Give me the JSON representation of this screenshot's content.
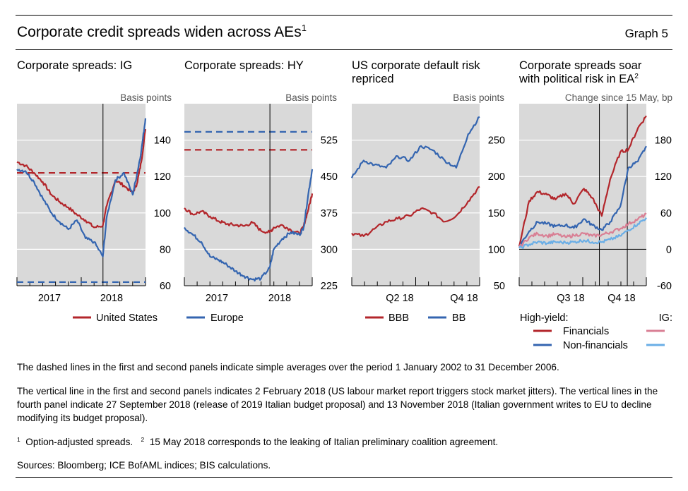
{
  "header": {
    "title": "Corporate credit spreads widen across AEs",
    "title_sup": "1",
    "graph_label": "Graph 5"
  },
  "panels": [
    {
      "title": "Corporate spreads: IG",
      "unit": "Basis points"
    },
    {
      "title": "Corporate spreads: HY",
      "unit": "Basis points"
    },
    {
      "title_line1": "US corporate default risk",
      "title_line2": "repriced",
      "unit": "Basis points"
    },
    {
      "title_line1": "Corporate spreads soar",
      "title_line2": "with political risk in EA",
      "title_sup": "2",
      "unit": "Change since 15 May, bp"
    }
  ],
  "legends": {
    "p1": [
      "United States",
      "Europe"
    ],
    "p3": [
      "BBB",
      "BB"
    ],
    "p4": {
      "hy_header": "High-yield:",
      "ig_header": "IG:",
      "rows": [
        "Financials",
        "Non-financials"
      ]
    }
  },
  "notes": {
    "dashed": "The dashed lines in the first and second panels indicate simple averages over the period 1 January 2002 to 31 December 2006.",
    "vertical": "The vertical line in the first and second panels indicates 2 February 2018 (US labour market report triggers stock market jitters). The vertical lines in the fourth panel indicate 27 September 2018 (release of 2019 Italian budget proposal) and 13 November 2018 (Italian government writes to EU to decline modifying its budget proposal).",
    "footnote1_mark": "1",
    "footnote1": "Option-adjusted spreads.",
    "footnote2_mark": "2",
    "footnote2": "15 May 2018 corresponds to the leaking of Italian preliminary coalition agreement.",
    "sources": "Sources: Bloomberg; ICE BofAML indices; BIS calculations."
  },
  "colors": {
    "red": "#b3262b",
    "blue": "#3465b0",
    "pink": "#d97f94",
    "lightblue": "#6aaee6",
    "panel_bg": "#d9d9d9"
  },
  "chart_data": [
    {
      "type": "line",
      "title": "Corporate spreads: IG",
      "ylabel": "Basis points",
      "ylim": [
        60,
        160
      ],
      "yticks": [
        60,
        80,
        100,
        120,
        140
      ],
      "xticks": [
        "2017",
        "2018"
      ],
      "x_range": [
        "2016-06",
        "2018-12"
      ],
      "vline": "2018-02-02",
      "series": [
        {
          "name": "United States",
          "color": "#b3262b",
          "x": [
            "2016-06",
            "2016-08",
            "2016-10",
            "2016-12",
            "2017-02",
            "2017-04",
            "2017-06",
            "2017-08",
            "2017-10",
            "2017-12",
            "2018-02",
            "2018-03",
            "2018-05",
            "2018-07",
            "2018-09",
            "2018-10",
            "2018-11",
            "2018-12"
          ],
          "values": [
            128,
            126,
            122,
            117,
            110,
            106,
            103,
            99,
            96,
            92,
            93,
            104,
            118,
            115,
            111,
            116,
            128,
            146
          ]
        },
        {
          "name": "Europe",
          "color": "#3465b0",
          "x": [
            "2016-06",
            "2016-08",
            "2016-10",
            "2016-12",
            "2017-02",
            "2017-04",
            "2017-06",
            "2017-08",
            "2017-10",
            "2017-12",
            "2018-02",
            "2018-03",
            "2018-05",
            "2018-07",
            "2018-09",
            "2018-10",
            "2018-11",
            "2018-12"
          ],
          "values": [
            124,
            123,
            117,
            108,
            100,
            95,
            91,
            96,
            86,
            84,
            76,
            98,
            118,
            122,
            110,
            121,
            134,
            152
          ]
        },
        {
          "name": "United States average",
          "color": "#b3262b",
          "dashed": true,
          "values": [
            122
          ]
        },
        {
          "name": "Europe average",
          "color": "#3465b0",
          "dashed": true,
          "values": [
            62
          ]
        }
      ]
    },
    {
      "type": "line",
      "title": "Corporate spreads: HY",
      "ylabel": "Basis points",
      "ylim": [
        225,
        600
      ],
      "yticks": [
        225,
        300,
        375,
        450,
        525
      ],
      "xticks": [
        "2017",
        "2018"
      ],
      "x_range": [
        "2016-06",
        "2018-12"
      ],
      "vline": "2018-02-02",
      "series": [
        {
          "name": "United States",
          "color": "#b3262b",
          "x": [
            "2016-06",
            "2016-08",
            "2016-10",
            "2016-12",
            "2017-02",
            "2017-04",
            "2017-06",
            "2017-08",
            "2017-10",
            "2017-12",
            "2018-02",
            "2018-03",
            "2018-05",
            "2018-07",
            "2018-09",
            "2018-10",
            "2018-11",
            "2018-12"
          ],
          "values": [
            385,
            372,
            378,
            368,
            358,
            352,
            350,
            348,
            355,
            338,
            335,
            345,
            350,
            340,
            332,
            348,
            380,
            415
          ]
        },
        {
          "name": "Europe",
          "color": "#3465b0",
          "x": [
            "2016-06",
            "2016-08",
            "2016-10",
            "2016-12",
            "2017-02",
            "2017-04",
            "2017-06",
            "2017-08",
            "2017-10",
            "2017-12",
            "2018-02",
            "2018-03",
            "2018-05",
            "2018-07",
            "2018-09",
            "2018-10",
            "2018-11",
            "2018-12"
          ],
          "values": [
            345,
            330,
            315,
            285,
            278,
            268,
            255,
            245,
            238,
            240,
            262,
            300,
            322,
            335,
            330,
            345,
            410,
            465
          ]
        },
        {
          "name": "United States average",
          "color": "#b3262b",
          "dashed": true,
          "values": [
            505
          ]
        },
        {
          "name": "Europe average",
          "color": "#3465b0",
          "dashed": true,
          "values": [
            542
          ]
        }
      ]
    },
    {
      "type": "line",
      "title": "US corporate default risk repriced",
      "ylabel": "Basis points",
      "ylim": [
        50,
        300
      ],
      "yticks": [
        50,
        100,
        150,
        200,
        250
      ],
      "xticks": [
        "Q2 18",
        "Q4 18"
      ],
      "x_range": [
        "2018-01",
        "2018-12"
      ],
      "series": [
        {
          "name": "BBB",
          "color": "#b3262b",
          "x": [
            "2018-01",
            "2018-02",
            "2018-03",
            "2018-04",
            "2018-05",
            "2018-06",
            "2018-07",
            "2018-08",
            "2018-09",
            "2018-10",
            "2018-11",
            "2018-12"
          ],
          "values": [
            122,
            118,
            128,
            138,
            142,
            146,
            156,
            150,
            138,
            146,
            166,
            186
          ]
        },
        {
          "name": "BB",
          "color": "#3465b0",
          "x": [
            "2018-01",
            "2018-02",
            "2018-03",
            "2018-04",
            "2018-05",
            "2018-06",
            "2018-07",
            "2018-08",
            "2018-09",
            "2018-10",
            "2018-11",
            "2018-12"
          ],
          "values": [
            198,
            222,
            216,
            212,
            228,
            222,
            242,
            236,
            222,
            212,
            258,
            282
          ]
        }
      ]
    },
    {
      "type": "line",
      "title": "Corporate spreads soar with political risk in EA",
      "ylabel": "Change since 15 May, bp",
      "ylim": [
        -60,
        240
      ],
      "yticks": [
        -60,
        0,
        60,
        120,
        180
      ],
      "xticks": [
        "Q3 18",
        "Q4 18"
      ],
      "x_range": [
        "2018-05-15",
        "2018-12-15"
      ],
      "vlines": [
        "2018-09-27",
        "2018-11-13"
      ],
      "series": [
        {
          "name": "High-yield Financials",
          "color": "#b3262b",
          "x": [
            "2018-05-15",
            "2018-06-01",
            "2018-06-15",
            "2018-07-01",
            "2018-07-15",
            "2018-08-01",
            "2018-08-15",
            "2018-09-01",
            "2018-09-15",
            "2018-10-01",
            "2018-10-15",
            "2018-11-01",
            "2018-11-15",
            "2018-12-01",
            "2018-12-15"
          ],
          "values": [
            5,
            80,
            95,
            90,
            82,
            92,
            75,
            100,
            85,
            55,
            115,
            160,
            165,
            200,
            220
          ]
        },
        {
          "name": "High-yield Non-financials",
          "color": "#3465b0",
          "x": [
            "2018-05-15",
            "2018-06-01",
            "2018-06-15",
            "2018-07-01",
            "2018-07-15",
            "2018-08-01",
            "2018-08-15",
            "2018-09-01",
            "2018-09-15",
            "2018-10-01",
            "2018-10-15",
            "2018-11-01",
            "2018-11-15",
            "2018-12-01",
            "2018-12-15"
          ],
          "values": [
            5,
            30,
            45,
            42,
            38,
            40,
            35,
            50,
            40,
            32,
            45,
            70,
            135,
            145,
            170
          ]
        },
        {
          "name": "IG Financials",
          "color": "#d97f94",
          "x": [
            "2018-05-15",
            "2018-06-01",
            "2018-06-15",
            "2018-07-01",
            "2018-07-15",
            "2018-08-01",
            "2018-08-15",
            "2018-09-01",
            "2018-09-15",
            "2018-10-01",
            "2018-10-15",
            "2018-11-01",
            "2018-11-15",
            "2018-12-01",
            "2018-12-15"
          ],
          "values": [
            3,
            20,
            26,
            22,
            25,
            20,
            23,
            26,
            22,
            24,
            28,
            34,
            42,
            50,
            58
          ]
        },
        {
          "name": "IG Non-financials",
          "color": "#6aaee6",
          "x": [
            "2018-05-15",
            "2018-06-01",
            "2018-06-15",
            "2018-07-01",
            "2018-07-15",
            "2018-08-01",
            "2018-08-15",
            "2018-09-01",
            "2018-09-15",
            "2018-10-01",
            "2018-10-15",
            "2018-11-01",
            "2018-11-15",
            "2018-12-01",
            "2018-12-15"
          ],
          "values": [
            2,
            8,
            12,
            10,
            12,
            11,
            12,
            15,
            12,
            12,
            16,
            22,
            32,
            42,
            52
          ]
        }
      ]
    }
  ]
}
